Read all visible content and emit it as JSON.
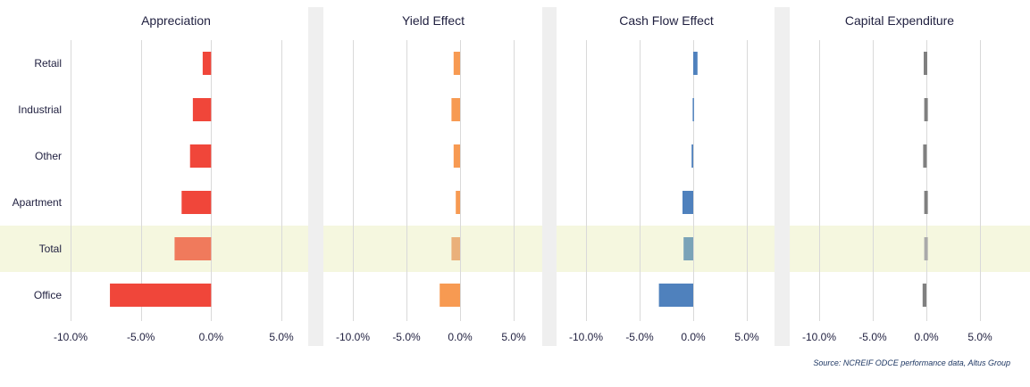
{
  "chart_data": {
    "type": "bar",
    "orientation": "horizontal",
    "categories": [
      "Retail",
      "Industrial",
      "Other",
      "Apartment",
      "Total",
      "Office"
    ],
    "highlight_category": "Total",
    "xlim": [
      -10,
      5
    ],
    "xticks": [
      -10,
      -5,
      0,
      5
    ],
    "xtick_labels": [
      "-10.0%",
      "-5.0%",
      "0.0%",
      "5.0%"
    ],
    "grid": true,
    "panels": [
      {
        "title": "Appreciation",
        "color": "#f0463a",
        "highlight_color": "#f07a5c",
        "values": [
          -0.6,
          -1.3,
          -1.5,
          -2.1,
          -2.6,
          -7.2
        ]
      },
      {
        "title": "Yield Effect",
        "color": "#f79a52",
        "highlight_color": "#eab07a",
        "values": [
          -0.6,
          -0.8,
          -0.6,
          -0.4,
          -0.8,
          -1.9
        ]
      },
      {
        "title": "Cash Flow Effect",
        "color": "#4f81bd",
        "highlight_color": "#7aa3b8",
        "values": [
          0.4,
          -0.05,
          -0.15,
          -1.0,
          -0.9,
          -3.2
        ]
      },
      {
        "title": "Capital Expenditure",
        "color": "#808080",
        "highlight_color": "#aaaaaa",
        "values": [
          -0.25,
          -0.2,
          -0.3,
          -0.2,
          -0.2,
          -0.35
        ]
      }
    ]
  },
  "source": "Source: NCREIF ODCE performance data, Altus Group"
}
